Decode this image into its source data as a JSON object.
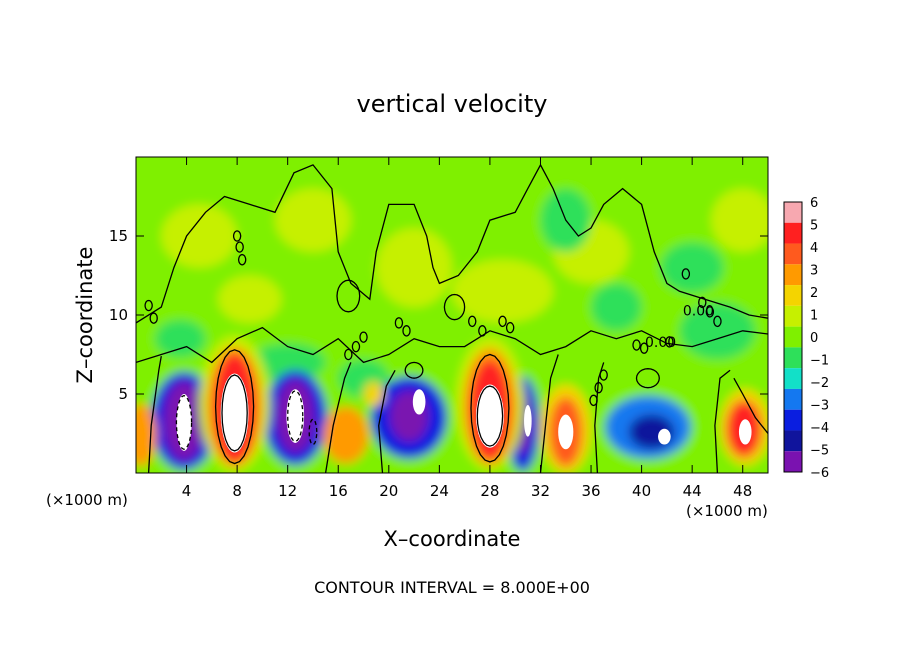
{
  "chart_data": {
    "type": "heatmap",
    "title": "vertical velocity",
    "xlabel": "X–coordinate",
    "ylabel": "Z–coordinate",
    "x_units_left": "(×1000 m)",
    "x_units_right": "(×1000 m)",
    "footer": "CONTOUR INTERVAL = 8.000E+00",
    "xlim": [
      0,
      50
    ],
    "ylim": [
      0,
      20
    ],
    "x_ticks": [
      4,
      8,
      12,
      16,
      20,
      24,
      28,
      32,
      36,
      40,
      44,
      48
    ],
    "y_ticks": [
      5,
      10,
      15
    ],
    "contour_labels": [
      {
        "text": "0.00",
        "x": 44.5,
        "y": 10.3
      },
      {
        "text": "0.00",
        "x": 41.5,
        "y": 8.3
      }
    ],
    "colorbar": {
      "ticks": [
        6,
        5,
        4,
        3,
        2,
        1,
        0,
        -1,
        -2,
        -3,
        -4,
        -5,
        -6
      ],
      "colors": [
        "#f7a8b0",
        "#ff2020",
        "#ff5a1e",
        "#ff9a00",
        "#f4d400",
        "#c6f000",
        "#7ff000",
        "#2ee05a",
        "#12e0c8",
        "#1478f0",
        "#0a1ee0",
        "#10149c",
        "#7a12b0"
      ]
    }
  }
}
